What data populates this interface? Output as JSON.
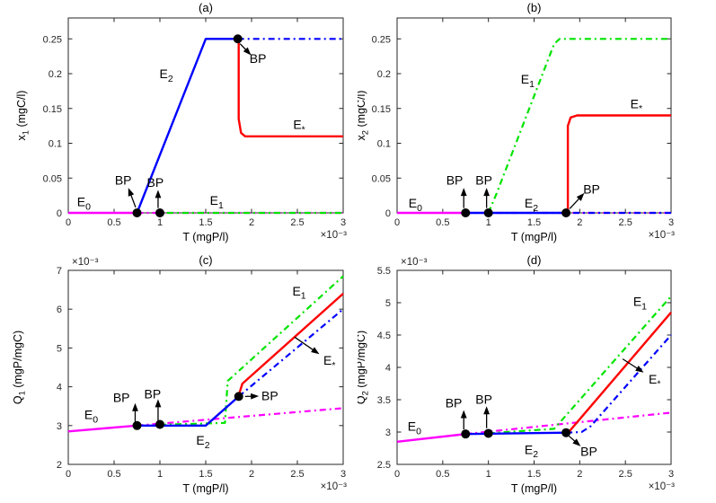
{
  "style": {
    "background": "#ffffff",
    "axis_color": "#262626",
    "tick_text_color": "#262626",
    "text_color": "#000000",
    "marker_color": "#000000",
    "arrow_color": "#000000",
    "color_E0": "#ff00ff",
    "color_E1": "#00e400",
    "color_E2": "#0000ff",
    "color_Estar": "#ff0000"
  },
  "chart_data": [
    {
      "id": "a",
      "type": "line",
      "title": "(a)",
      "xlabel": "T (mgP/l)",
      "ylabel": {
        "base": "x",
        "sub": "1",
        "rest": " (mgC/l)"
      },
      "x_exponent": "×10⁻³",
      "y_exponent": null,
      "xlim": [
        0,
        3
      ],
      "ylim": [
        0,
        0.28
      ],
      "xtick_vals": [
        0,
        0.5,
        1,
        1.5,
        2,
        2.5,
        3
      ],
      "xtick_labels": [
        "0",
        "0.5",
        "1",
        "1.5",
        "2",
        "2.5",
        "3"
      ],
      "ytick_vals": [
        0,
        0.05,
        0.1,
        0.15,
        0.2,
        0.25
      ],
      "ytick_labels": [
        "0",
        "0.05",
        "0.1",
        "0.15",
        "0.2",
        "0.25"
      ],
      "series": [
        {
          "name": "E0-solid",
          "color": "#ff00ff",
          "style": "solid",
          "points": [
            [
              0,
              0
            ],
            [
              0.75,
              0
            ]
          ]
        },
        {
          "name": "E0-dashdot",
          "color": "#ff00ff",
          "style": "dashdot",
          "points": [
            [
              0.75,
              0
            ],
            [
              3,
              0
            ]
          ]
        },
        {
          "name": "E1-dashdot",
          "color": "#00e400",
          "style": "dashdot",
          "dash_offset": 9,
          "points": [
            [
              1.0,
              0
            ],
            [
              3,
              0
            ]
          ]
        },
        {
          "name": "E2-solid",
          "color": "#0000ff",
          "style": "solid",
          "points": [
            [
              0.75,
              0
            ],
            [
              1.5,
              0.25
            ],
            [
              1.85,
              0.25
            ]
          ]
        },
        {
          "name": "E2-dashdot",
          "color": "#0000ff",
          "style": "dashdot",
          "points": [
            [
              1.85,
              0.25
            ],
            [
              3,
              0.25
            ]
          ]
        },
        {
          "name": "Estar-solid",
          "color": "#ff0000",
          "style": "solid",
          "points": [
            [
              1.86,
              0.245
            ],
            [
              1.86,
              0.135
            ],
            [
              1.885,
              0.115
            ],
            [
              1.93,
              0.11
            ],
            [
              3,
              0.11
            ]
          ]
        }
      ],
      "markers": [
        [
          0.75,
          0
        ],
        [
          1.0,
          0
        ],
        [
          1.85,
          0.25
        ]
      ],
      "labels": [
        {
          "base": "E",
          "sub": "0",
          "x": 0.17,
          "y": 0.016
        },
        {
          "base": "BP",
          "x": 0.6,
          "y": 0.047
        },
        {
          "base": "BP",
          "x": 0.95,
          "y": 0.044
        },
        {
          "base": "E",
          "sub": "2",
          "x": 1.07,
          "y": 0.2
        },
        {
          "base": "E",
          "sub": "1",
          "x": 1.62,
          "y": 0.018
        },
        {
          "base": "BP",
          "x": 2.07,
          "y": 0.222
        },
        {
          "base": "E",
          "sub": "*",
          "x": 2.52,
          "y": 0.127
        }
      ],
      "arrows": [
        {
          "x1": 0.735,
          "y1": 0.008,
          "x2": 0.655,
          "y2": 0.036
        },
        {
          "x1": 0.98,
          "y1": 0.007,
          "x2": 0.98,
          "y2": 0.033
        },
        {
          "x1": 1.875,
          "y1": 0.243,
          "x2": 1.995,
          "y2": 0.2265
        }
      ]
    },
    {
      "id": "b",
      "type": "line",
      "title": "(b)",
      "xlabel": "T (mgP/l)",
      "ylabel": {
        "base": "x",
        "sub": "2",
        "rest": " (mgC/l)"
      },
      "x_exponent": "×10⁻³",
      "y_exponent": null,
      "xlim": [
        0,
        3
      ],
      "ylim": [
        0,
        0.28
      ],
      "xtick_vals": [
        0,
        0.5,
        1,
        1.5,
        2,
        2.5,
        3
      ],
      "xtick_labels": [
        "0",
        "0.5",
        "1",
        "1.5",
        "2",
        "2.5",
        "3"
      ],
      "ytick_vals": [
        0,
        0.05,
        0.1,
        0.15,
        0.2,
        0.25
      ],
      "ytick_labels": [
        "0",
        "0.05",
        "0.1",
        "0.15",
        "0.2",
        "0.25"
      ],
      "series": [
        {
          "name": "E0-solid",
          "color": "#ff00ff",
          "style": "solid",
          "points": [
            [
              0,
              0
            ],
            [
              0.75,
              0
            ]
          ]
        },
        {
          "name": "E0-dashdot",
          "color": "#ff00ff",
          "style": "dashdot",
          "points": [
            [
              0.75,
              0
            ],
            [
              3,
              0
            ]
          ]
        },
        {
          "name": "E2-solid",
          "color": "#0000ff",
          "style": "solid",
          "points": [
            [
              0.75,
              0
            ],
            [
              1.85,
              0
            ]
          ]
        },
        {
          "name": "E2-dashdot",
          "color": "#0000ff",
          "style": "dashdot",
          "dash_offset": 9,
          "points": [
            [
              1.85,
              0
            ],
            [
              3,
              0
            ]
          ]
        },
        {
          "name": "E1-dashdot",
          "color": "#00e400",
          "style": "dashdot",
          "points": [
            [
              1.0,
              0
            ],
            [
              1.09,
              0.028
            ],
            [
              1.72,
              0.243
            ],
            [
              1.78,
              0.25
            ],
            [
              3,
              0.25
            ]
          ]
        },
        {
          "name": "Estar-solid",
          "color": "#ff0000",
          "style": "solid",
          "points": [
            [
              1.87,
              0
            ],
            [
              1.87,
              0.125
            ],
            [
              1.9,
              0.137
            ],
            [
              1.97,
              0.14
            ],
            [
              3,
              0.14
            ]
          ]
        }
      ],
      "markers": [
        [
          0.75,
          0
        ],
        [
          1.0,
          0
        ],
        [
          1.85,
          0
        ]
      ],
      "labels": [
        {
          "base": "E",
          "sub": "0",
          "x": 0.2,
          "y": 0.014
        },
        {
          "base": "BP",
          "x": 0.63,
          "y": 0.047
        },
        {
          "base": "BP",
          "x": 0.95,
          "y": 0.047
        },
        {
          "base": "E",
          "sub": "1",
          "x": 1.43,
          "y": 0.192
        },
        {
          "base": "E",
          "sub": "2",
          "x": 1.47,
          "y": 0.014
        },
        {
          "base": "BP",
          "x": 2.13,
          "y": 0.034
        },
        {
          "base": "E",
          "sub": "*",
          "x": 2.62,
          "y": 0.157
        }
      ],
      "arrows": [
        {
          "x1": 0.73,
          "y1": 0.007,
          "x2": 0.73,
          "y2": 0.036
        },
        {
          "x1": 0.98,
          "y1": 0.007,
          "x2": 0.98,
          "y2": 0.036
        },
        {
          "x1": 1.89,
          "y1": 0.006,
          "x2": 2.05,
          "y2": 0.0285
        }
      ]
    },
    {
      "id": "c",
      "type": "line",
      "title": "(c)",
      "xlabel": "T (mgP/l)",
      "ylabel": {
        "base": "Q",
        "sub": "1",
        "rest": " (mgP/mgC)"
      },
      "x_exponent": "×10⁻³",
      "y_exponent": "×10⁻³",
      "xlim": [
        0,
        3
      ],
      "ylim": [
        2,
        7
      ],
      "xtick_vals": [
        0,
        0.5,
        1,
        1.5,
        2,
        2.5,
        3
      ],
      "xtick_labels": [
        "0",
        "0.5",
        "1",
        "1.5",
        "2",
        "2.5",
        "3"
      ],
      "ytick_vals": [
        2,
        3,
        4,
        5,
        6,
        7
      ],
      "ytick_labels": [
        "2",
        "3",
        "4",
        "5",
        "6",
        "7"
      ],
      "series": [
        {
          "name": "E0-solid",
          "color": "#ff00ff",
          "style": "solid",
          "points": [
            [
              0,
              2.85
            ],
            [
              0.75,
              3.0
            ]
          ]
        },
        {
          "name": "E0-dashdot",
          "color": "#ff00ff",
          "style": "dashdot",
          "points": [
            [
              0.75,
              3.0
            ],
            [
              3,
              3.45
            ]
          ]
        },
        {
          "name": "E1-dashdot",
          "color": "#00e400",
          "style": "dashdot",
          "points": [
            [
              1.0,
              3.02
            ],
            [
              1.71,
              3.07
            ],
            [
              1.74,
              4.15
            ],
            [
              3,
              6.85
            ]
          ]
        },
        {
          "name": "E2-solid",
          "color": "#0000ff",
          "style": "solid",
          "points": [
            [
              0.75,
              3.0
            ],
            [
              1.5,
              3.0
            ],
            [
              1.86,
              3.75
            ]
          ]
        },
        {
          "name": "E2-dashdot",
          "color": "#0000ff",
          "style": "dashdot",
          "points": [
            [
              1.86,
              3.75
            ],
            [
              3,
              6.0
            ]
          ]
        },
        {
          "name": "Estar-solid",
          "color": "#ff0000",
          "style": "solid",
          "points": [
            [
              1.86,
              3.78
            ],
            [
              1.9,
              4.08
            ],
            [
              3,
              6.4
            ]
          ]
        }
      ],
      "markers": [
        [
          0.75,
          3.0
        ],
        [
          1.0,
          3.03
        ],
        [
          1.86,
          3.75
        ]
      ],
      "labels": [
        {
          "base": "E",
          "sub": "0",
          "x": 0.25,
          "y": 3.28
        },
        {
          "base": "BP",
          "x": 0.58,
          "y": 3.72
        },
        {
          "base": "BP",
          "x": 0.92,
          "y": 3.82
        },
        {
          "base": "E",
          "sub": "2",
          "x": 1.47,
          "y": 2.62
        },
        {
          "base": "BP",
          "x": 2.2,
          "y": 3.77
        },
        {
          "base": "E",
          "sub": "1",
          "x": 2.52,
          "y": 6.47
        },
        {
          "base": "E",
          "sub": "*",
          "x": 2.85,
          "y": 4.68
        }
      ],
      "arrows": [
        {
          "x1": 0.73,
          "y1": 3.1,
          "x2": 0.73,
          "y2": 3.58
        },
        {
          "x1": 0.98,
          "y1": 3.12,
          "x2": 0.98,
          "y2": 3.68
        },
        {
          "x1": 1.93,
          "y1": 3.75,
          "x2": 2.08,
          "y2": 3.76
        },
        {
          "x1": 2.47,
          "y1": 5.28,
          "x2": 2.74,
          "y2": 4.84
        }
      ]
    },
    {
      "id": "d",
      "type": "line",
      "title": "(d)",
      "xlabel": "T (mgP/l)",
      "ylabel": {
        "base": "Q",
        "sub": "2",
        "rest": " (mgP/mgC)"
      },
      "x_exponent": "×10⁻³",
      "y_exponent": "×10⁻³",
      "xlim": [
        0,
        3
      ],
      "ylim": [
        2.5,
        5.5
      ],
      "xtick_vals": [
        0,
        0.5,
        1,
        1.5,
        2,
        2.5,
        3
      ],
      "xtick_labels": [
        "0",
        "0.5",
        "1",
        "1.5",
        "2",
        "2.5",
        "3"
      ],
      "ytick_vals": [
        2.5,
        3,
        3.5,
        4,
        4.5,
        5,
        5.5
      ],
      "ytick_labels": [
        "2.5",
        "3",
        "3.5",
        "4",
        "4.5",
        "5",
        "5.5"
      ],
      "series": [
        {
          "name": "E0-solid",
          "color": "#ff00ff",
          "style": "solid",
          "points": [
            [
              0,
              2.85
            ],
            [
              0.75,
              2.97
            ]
          ]
        },
        {
          "name": "E0-dashdot",
          "color": "#ff00ff",
          "style": "dashdot",
          "points": [
            [
              0.75,
              2.97
            ],
            [
              3,
              3.3
            ]
          ]
        },
        {
          "name": "E1-dashdot",
          "color": "#00e400",
          "style": "dashdot",
          "points": [
            [
              1.0,
              2.98
            ],
            [
              1.72,
              3.05
            ],
            [
              3,
              5.1
            ]
          ]
        },
        {
          "name": "E2-solid",
          "color": "#0000ff",
          "style": "solid",
          "points": [
            [
              0.75,
              2.97
            ],
            [
              1.85,
              2.99
            ]
          ]
        },
        {
          "name": "E2-dashdot",
          "color": "#0000ff",
          "style": "dashdot",
          "points": [
            [
              1.85,
              2.99
            ],
            [
              2.02,
              3.0
            ],
            [
              2.12,
              3.09
            ],
            [
              3,
              4.5
            ]
          ]
        },
        {
          "name": "Estar-solid",
          "color": "#ff0000",
          "style": "solid",
          "points": [
            [
              1.88,
              3.0
            ],
            [
              3,
              4.85
            ]
          ]
        }
      ],
      "markers": [
        [
          0.75,
          2.97
        ],
        [
          1.0,
          2.98
        ],
        [
          1.85,
          2.99
        ]
      ],
      "labels": [
        {
          "base": "E",
          "sub": "0",
          "x": 0.19,
          "y": 3.09
        },
        {
          "base": "BP",
          "x": 0.62,
          "y": 3.45
        },
        {
          "base": "BP",
          "x": 0.95,
          "y": 3.51
        },
        {
          "base": "E",
          "sub": "2",
          "x": 1.47,
          "y": 2.73
        },
        {
          "base": "BP",
          "x": 2.1,
          "y": 2.7
        },
        {
          "base": "E",
          "sub": "1",
          "x": 2.66,
          "y": 5.02
        },
        {
          "base": "E",
          "sub": "*",
          "x": 2.82,
          "y": 3.82
        }
      ],
      "arrows": [
        {
          "x1": 0.73,
          "y1": 3.04,
          "x2": 0.73,
          "y2": 3.34
        },
        {
          "x1": 0.98,
          "y1": 3.06,
          "x2": 0.98,
          "y2": 3.4
        },
        {
          "x1": 1.88,
          "y1": 2.94,
          "x2": 2.01,
          "y2": 2.78
        },
        {
          "x1": 2.47,
          "y1": 4.13,
          "x2": 2.7,
          "y2": 3.92
        }
      ]
    }
  ]
}
